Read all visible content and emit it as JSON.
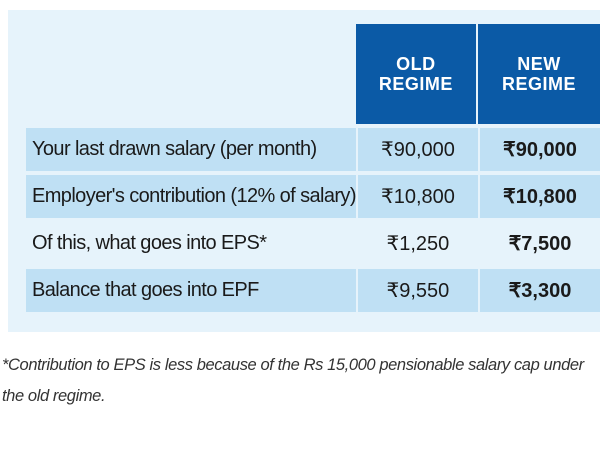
{
  "table": {
    "headers": {
      "old": [
        "OLD",
        "REGIME"
      ],
      "new": [
        "NEW",
        "REGIME"
      ]
    },
    "rows": [
      {
        "label": "Your last drawn salary (per month)",
        "old": "₹90,000",
        "new": "₹90,000"
      },
      {
        "label": "Employer's contribution (12% of salary)",
        "old": "₹10,800",
        "new": "₹10,800"
      },
      {
        "label": "Of this, what goes into EPS*",
        "old": "₹1,250",
        "new": "₹7,500"
      },
      {
        "label": "Balance that goes into EPF",
        "old": "₹9,550",
        "new": "₹3,300"
      }
    ]
  },
  "footnote": "*Contribution to EPS is less because of the Rs 15,000 pensionable salary cap under the old regime.",
  "colors": {
    "header_bg": "#0b5aa6",
    "panel_bg": "#e6f3fb",
    "row_highlight": "#bfe0f4"
  }
}
